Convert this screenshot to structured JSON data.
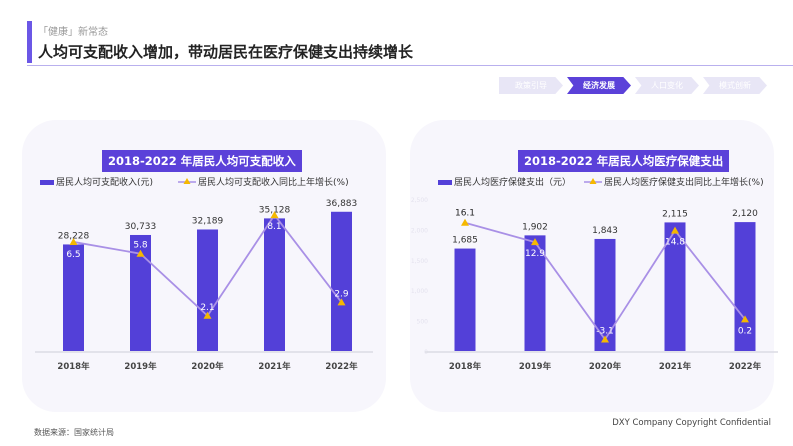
{
  "header": {
    "subtitle": "「健康」新常态",
    "title": "人均可支配收入增加，带动居民在医疗保健支出持续增长"
  },
  "tabs": [
    {
      "label": "政策引导",
      "active": false
    },
    {
      "label": "经济发展",
      "active": true
    },
    {
      "label": "人口变化",
      "active": false
    },
    {
      "label": "模式创新",
      "active": false
    }
  ],
  "footer": {
    "source": "数据来源：国家统计局",
    "copyright": "DXY Company Copyright Confidential"
  },
  "colors": {
    "bar": "#5340d8",
    "line": "#a990e6",
    "marker": "#f5b800"
  },
  "chart_data": [
    {
      "type": "bar+line",
      "title": "2018-2022 年居民人均可支配收入",
      "categories": [
        "2018年",
        "2019年",
        "2020年",
        "2021年",
        "2022年"
      ],
      "series": [
        {
          "name": "居民人均可支配收入(元)",
          "type": "bar",
          "values": [
            28228,
            30733,
            32189,
            35128,
            36883
          ],
          "labels": [
            "28,228",
            "30,733",
            "32,189",
            "35,128",
            "36,883"
          ]
        },
        {
          "name": "居民人均可支配收入同比上年增长(%)",
          "type": "line",
          "values": [
            6.5,
            5.8,
            2.1,
            8.1,
            2.9
          ],
          "labels": [
            "6.5",
            "5.8",
            "2.1",
            "8.1",
            "2.9"
          ]
        }
      ],
      "ylim": [
        0,
        40000
      ],
      "y2lim": [
        0,
        9
      ],
      "legend": "top"
    },
    {
      "type": "bar+line",
      "title": "2018-2022 年居民人均医疗保健支出",
      "categories": [
        "2018年",
        "2019年",
        "2020年",
        "2021年",
        "2022年"
      ],
      "series": [
        {
          "name": "居民人均医疗保健支出（元）",
          "type": "bar",
          "values": [
            1685,
            1902,
            1843,
            2115,
            2120
          ],
          "labels": [
            "1,685",
            "1,902",
            "1,843",
            "2,115",
            "2,120"
          ]
        },
        {
          "name": "居民人均医疗保健支出同比上年增长(%)",
          "type": "line",
          "values": [
            16.1,
            12.9,
            -3.1,
            14.8,
            0.2
          ],
          "labels": [
            "16.1",
            "12.9",
            "-3.1",
            "14.8",
            "0.2"
          ]
        }
      ],
      "ylim": [
        0,
        2500
      ],
      "yticks": [
        "0",
        "500",
        "1,000",
        "1,500",
        "2,000",
        "2,500"
      ],
      "y2lim": [
        -5,
        20
      ],
      "legend": "top"
    }
  ]
}
